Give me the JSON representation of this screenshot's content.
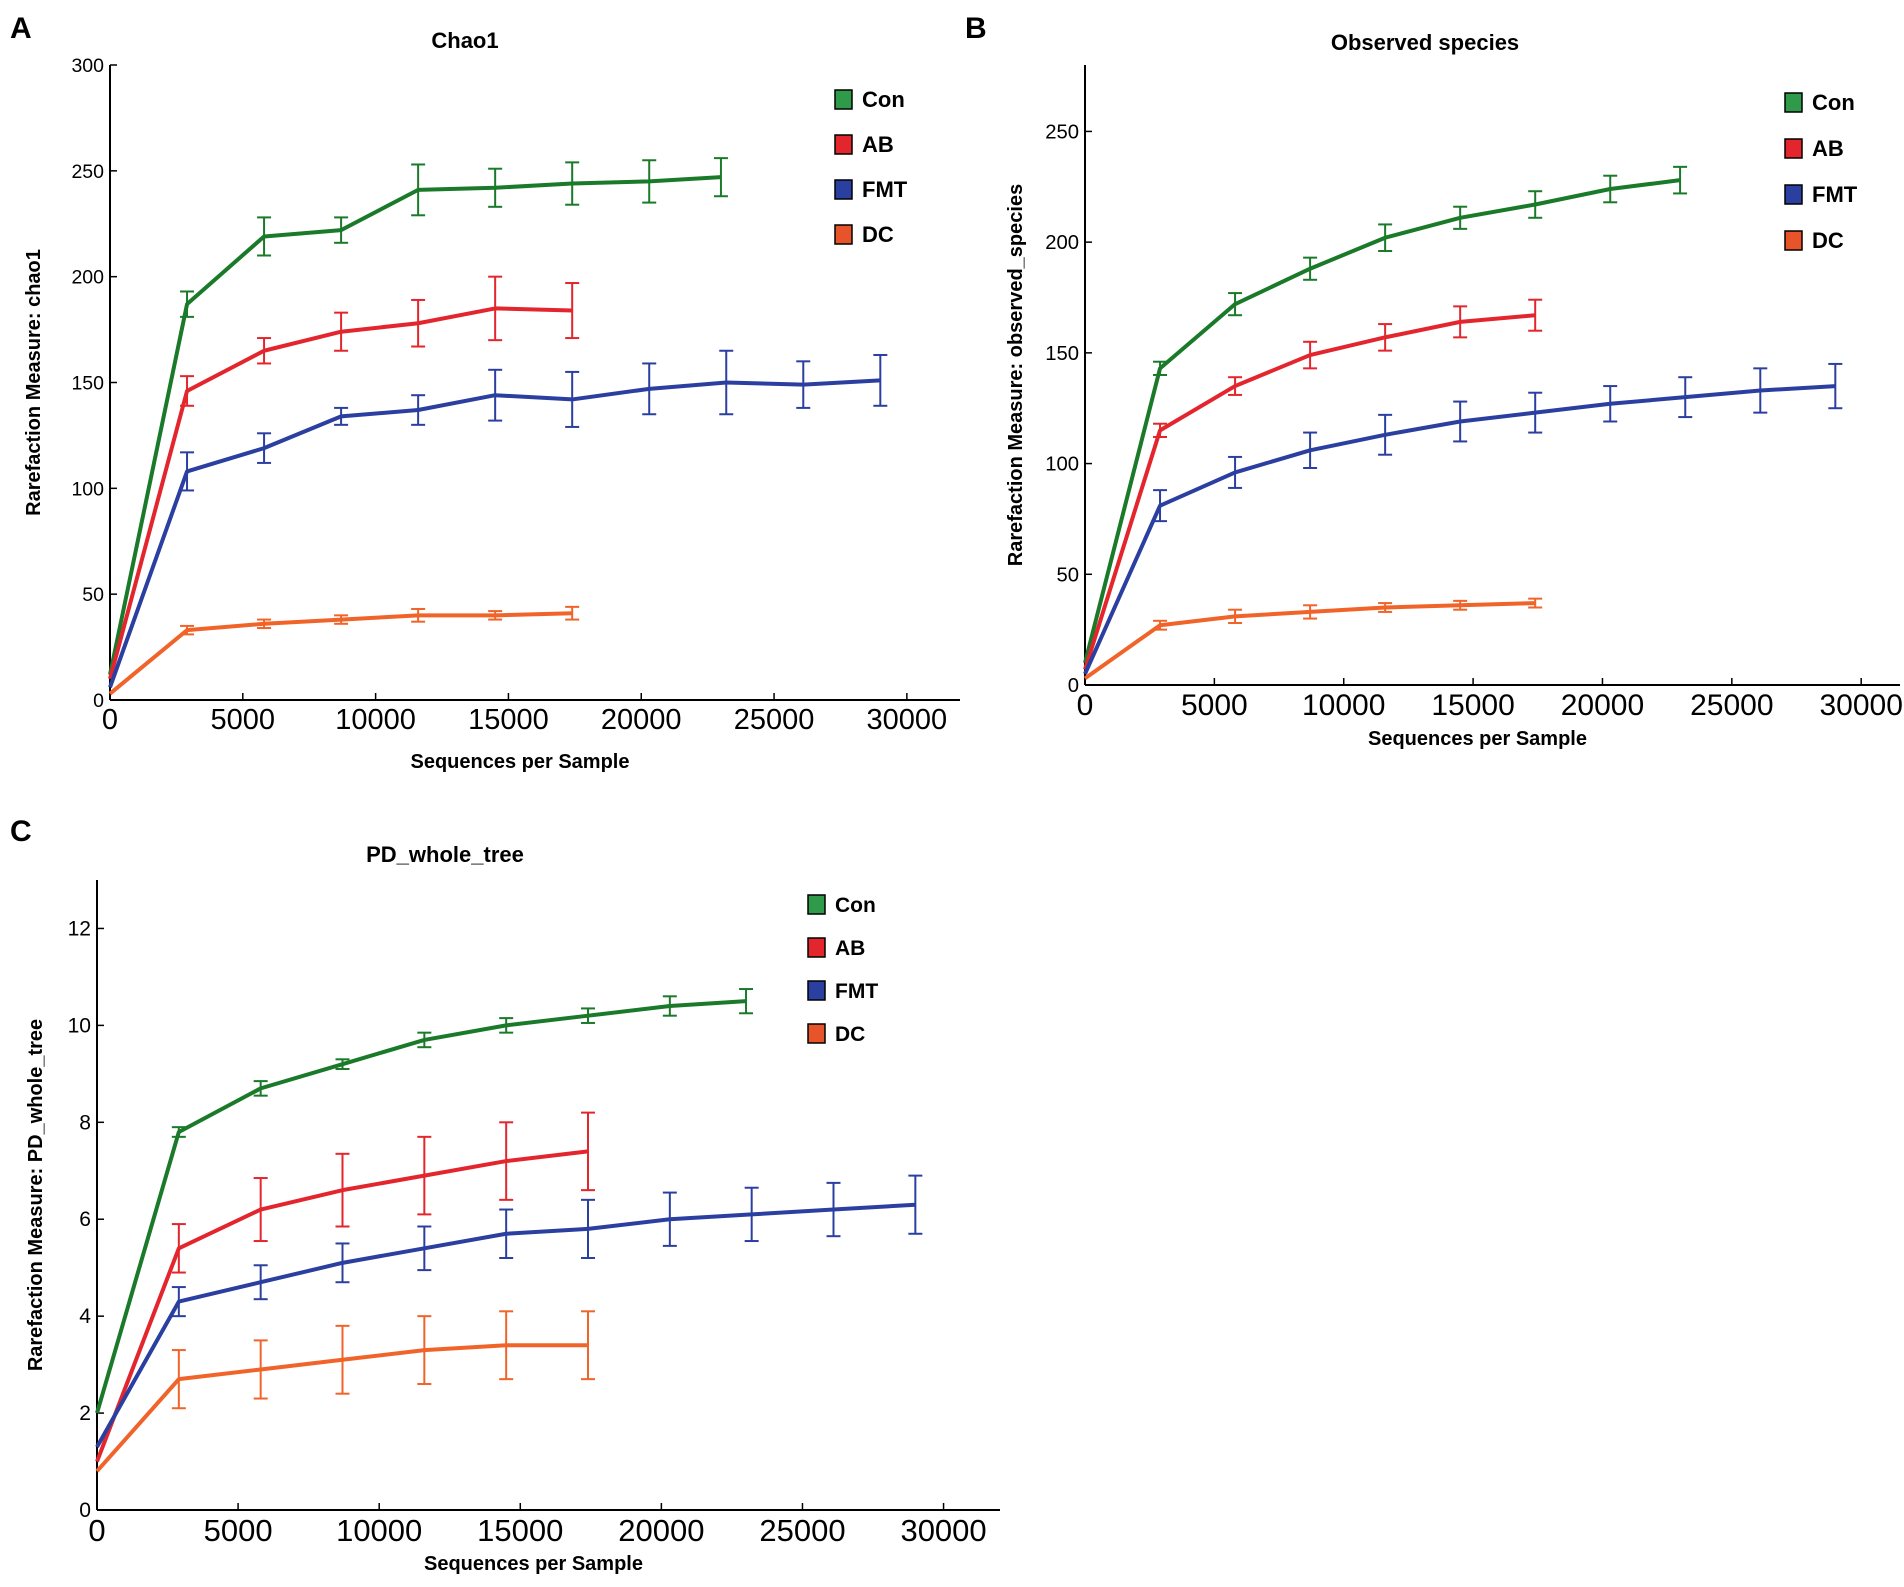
{
  "panel_letters": [
    "A",
    "B",
    "C"
  ],
  "chart_data": [
    {
      "type": "line",
      "title": "Chao1",
      "xlabel": "Sequences per Sample",
      "ylabel": "Rarefaction Measure: chao1",
      "xlim": [
        0,
        32000
      ],
      "ylim": [
        0,
        300
      ],
      "xticks": [
        0,
        5000,
        10000,
        15000,
        20000,
        25000,
        30000
      ],
      "yticks": [
        0,
        50,
        100,
        150,
        200,
        250,
        300
      ],
      "legend": "top-right",
      "series": [
        {
          "name": "Con",
          "color": "#1a7a2a",
          "legend_color": "#2e9a4a",
          "x": [
            0,
            2900,
            5800,
            8700,
            11600,
            14500,
            17400,
            20300,
            23000
          ],
          "y": [
            12,
            187,
            219,
            222,
            241,
            242,
            244,
            245,
            247
          ],
          "err": [
            0,
            6,
            9,
            6,
            12,
            9,
            10,
            10,
            9
          ]
        },
        {
          "name": "AB",
          "color": "#e3262d",
          "legend_color": "#e3262d",
          "x": [
            0,
            2900,
            5800,
            8700,
            11600,
            14500,
            17400
          ],
          "y": [
            10,
            146,
            165,
            174,
            178,
            185,
            184
          ],
          "err": [
            0,
            7,
            6,
            9,
            11,
            15,
            13
          ]
        },
        {
          "name": "FMT",
          "color": "#2b3fa0",
          "legend_color": "#2b3fa0",
          "x": [
            0,
            2900,
            5800,
            8700,
            11600,
            14500,
            17400,
            20300,
            23200,
            26100,
            29000
          ],
          "y": [
            6,
            108,
            119,
            134,
            137,
            144,
            142,
            147,
            150,
            149,
            151
          ],
          "err": [
            0,
            9,
            7,
            4,
            7,
            12,
            13,
            12,
            15,
            11,
            12
          ]
        },
        {
          "name": "DC",
          "color": "#f0642a",
          "legend_color": "#e8542a",
          "x": [
            0,
            2900,
            5800,
            8700,
            11600,
            14500,
            17400
          ],
          "y": [
            3,
            33,
            36,
            38,
            40,
            40,
            41
          ],
          "err": [
            0,
            2,
            2,
            2,
            3,
            2,
            3
          ]
        }
      ]
    },
    {
      "type": "line",
      "title": "Observed species",
      "xlabel": "Sequences per Sample",
      "ylabel": "Rarefaction Measure: observed_species",
      "xlim": [
        0,
        31500
      ],
      "ylim": [
        0,
        280
      ],
      "xticks": [
        0,
        5000,
        10000,
        15000,
        20000,
        25000,
        30000
      ],
      "yticks": [
        0,
        50,
        100,
        150,
        200,
        250
      ],
      "legend": "top-right",
      "series": [
        {
          "name": "Con",
          "color": "#1a7a2a",
          "legend_color": "#2e9a4a",
          "x": [
            0,
            2900,
            5800,
            8700,
            11600,
            14500,
            17400,
            20300,
            23000
          ],
          "y": [
            10,
            143,
            172,
            188,
            202,
            211,
            217,
            224,
            228
          ],
          "err": [
            0,
            3,
            5,
            5,
            6,
            5,
            6,
            6,
            6
          ]
        },
        {
          "name": "AB",
          "color": "#e3262d",
          "legend_color": "#e3262d",
          "x": [
            0,
            2900,
            5800,
            8700,
            11600,
            14500,
            17400
          ],
          "y": [
            7,
            115,
            135,
            149,
            157,
            164,
            167
          ],
          "err": [
            0,
            3,
            4,
            6,
            6,
            7,
            7
          ]
        },
        {
          "name": "FMT",
          "color": "#2b3fa0",
          "legend_color": "#2b3fa0",
          "x": [
            0,
            2900,
            5800,
            8700,
            11600,
            14500,
            17400,
            20300,
            23200,
            26100,
            29000
          ],
          "y": [
            5,
            81,
            96,
            106,
            113,
            119,
            123,
            127,
            130,
            133,
            135
          ],
          "err": [
            0,
            7,
            7,
            8,
            9,
            9,
            9,
            8,
            9,
            10,
            10
          ]
        },
        {
          "name": "DC",
          "color": "#f0642a",
          "legend_color": "#e8542a",
          "x": [
            0,
            2900,
            5800,
            8700,
            11600,
            14500,
            17400
          ],
          "y": [
            3,
            27,
            31,
            33,
            35,
            36,
            37
          ],
          "err": [
            0,
            2,
            3,
            3,
            2,
            2,
            2
          ]
        }
      ]
    },
    {
      "type": "line",
      "title": "PD_whole_tree",
      "xlabel": "Sequences per Sample",
      "ylabel": "Rarefaction Measure: PD_whole_tree",
      "xlim": [
        0,
        32000
      ],
      "ylim": [
        0,
        13
      ],
      "xticks": [
        0,
        5000,
        10000,
        15000,
        20000,
        25000,
        30000
      ],
      "yticks": [
        0,
        2,
        4,
        6,
        8,
        10,
        12
      ],
      "legend": "top-right",
      "series": [
        {
          "name": "Con",
          "color": "#1a7a2a",
          "legend_color": "#2e9a4a",
          "x": [
            0,
            2900,
            5800,
            8700,
            11600,
            14500,
            17400,
            20300,
            23000
          ],
          "y": [
            2.0,
            7.8,
            8.7,
            9.2,
            9.7,
            10.0,
            10.2,
            10.4,
            10.5
          ],
          "err": [
            0,
            0.1,
            0.15,
            0.1,
            0.15,
            0.15,
            0.15,
            0.2,
            0.25
          ]
        },
        {
          "name": "AB",
          "color": "#e3262d",
          "legend_color": "#e3262d",
          "x": [
            0,
            2900,
            5800,
            8700,
            11600,
            14500,
            17400
          ],
          "y": [
            1.0,
            5.4,
            6.2,
            6.6,
            6.9,
            7.2,
            7.4
          ],
          "err": [
            0,
            0.5,
            0.65,
            0.75,
            0.8,
            0.8,
            0.8
          ]
        },
        {
          "name": "FMT",
          "color": "#2b3fa0",
          "legend_color": "#2b3fa0",
          "x": [
            0,
            2900,
            5800,
            8700,
            11600,
            14500,
            17400,
            20300,
            23200,
            26100,
            29000
          ],
          "y": [
            1.3,
            4.3,
            4.7,
            5.1,
            5.4,
            5.7,
            5.8,
            6.0,
            6.1,
            6.2,
            6.3
          ],
          "err": [
            0,
            0.3,
            0.35,
            0.4,
            0.45,
            0.5,
            0.6,
            0.55,
            0.55,
            0.55,
            0.6
          ]
        },
        {
          "name": "DC",
          "color": "#f0642a",
          "legend_color": "#e8542a",
          "x": [
            0,
            2900,
            5800,
            8700,
            11600,
            14500,
            17400
          ],
          "y": [
            0.8,
            2.7,
            2.9,
            3.1,
            3.3,
            3.4,
            3.4
          ],
          "err": [
            0,
            0.6,
            0.6,
            0.7,
            0.7,
            0.7,
            0.7
          ]
        }
      ]
    }
  ]
}
